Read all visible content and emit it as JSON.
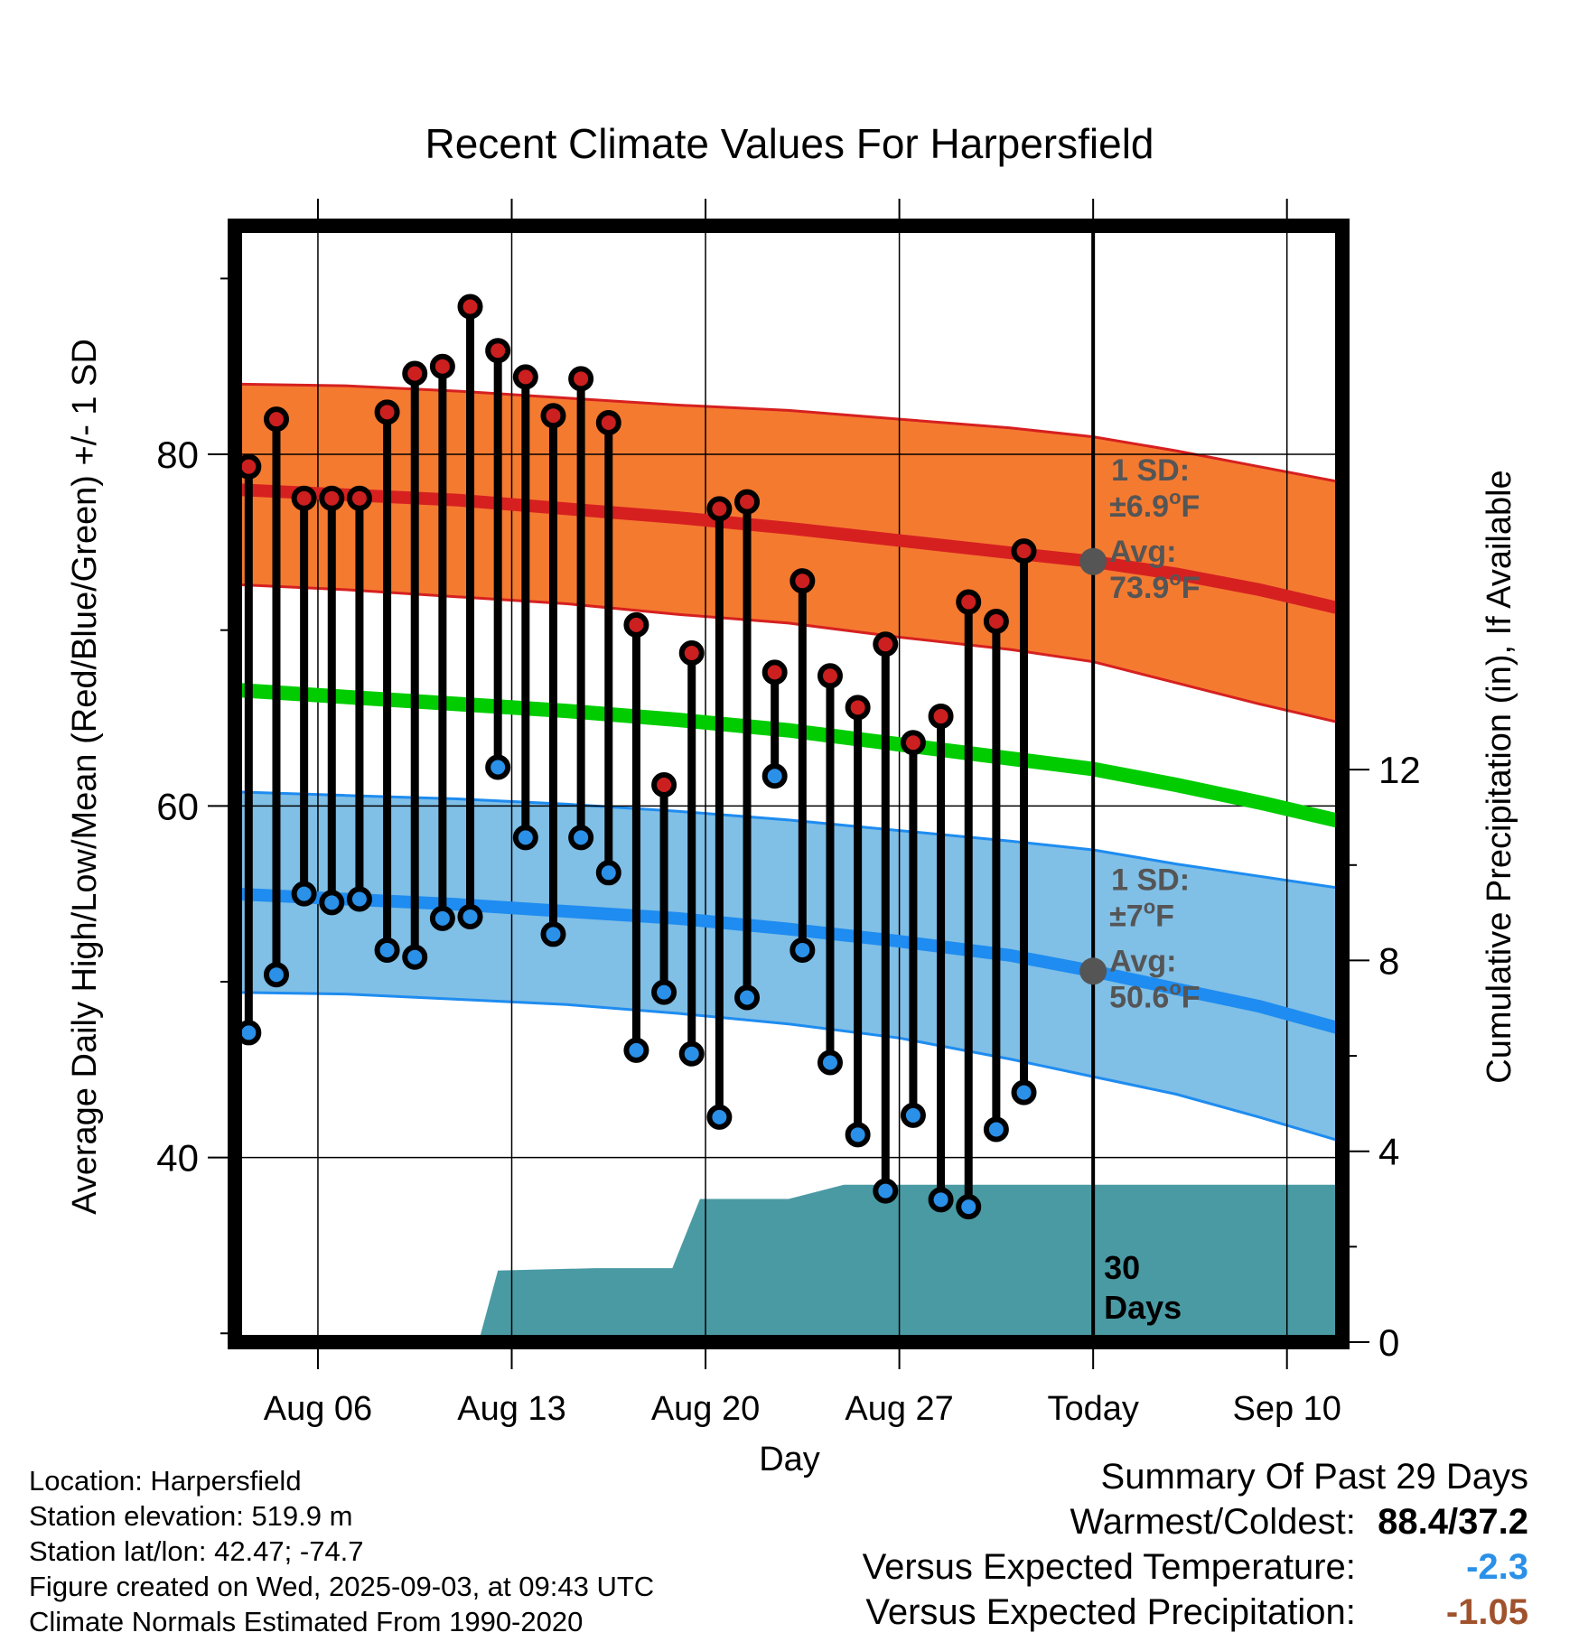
{
  "colors": {
    "high_band": "#f47a30",
    "high_band_edge": "#d62020",
    "high_mean": "#d62020",
    "low_band": "#80bfe6",
    "low_band_edge": "#1e8cf0",
    "low_mean": "#1e8cf0",
    "daily_mean": "#00cc00",
    "precip": "#4a9aa4",
    "high_marker": "#cc1f1f",
    "low_marker": "#2a90e8",
    "avg_marker": "#555555",
    "annotation": "#555555",
    "vs_temp": "#2a90e8",
    "vs_precip": "#a0522d"
  },
  "chart_data": {
    "type": "line",
    "title": "Recent Climate Values For Harpersfield",
    "xlabel": "Day",
    "ylabel": "Average Daily High/Low/Mean (Red/Blue/Green) +/- 1 SD",
    "y2label": "Cumulative Precipitation (in), If Available",
    "ylim": [
      29.5,
      93
    ],
    "y2lim": [
      0,
      23.4
    ],
    "xlim": [
      0.5,
      40.5
    ],
    "grid": true,
    "x_ticks": [
      {
        "x": 3.5,
        "label": "Aug 06"
      },
      {
        "x": 10.5,
        "label": "Aug 13"
      },
      {
        "x": 17.5,
        "label": "Aug 20"
      },
      {
        "x": 24.5,
        "label": "Aug 27"
      },
      {
        "x": 31.5,
        "label": "Today"
      },
      {
        "x": 38.5,
        "label": "Sep 10"
      }
    ],
    "y_ticks": [
      40,
      60,
      80
    ],
    "y_minor_ticks": [
      30,
      50,
      70,
      90
    ],
    "y2_ticks": [
      0,
      4,
      8,
      12
    ],
    "today_x": 31.5,
    "today_label": [
      "30",
      "Days"
    ],
    "daily_high": [
      79.3,
      82,
      77.5,
      77.5,
      77.5,
      82.4,
      84.6,
      85,
      88.4,
      85.9,
      84.4,
      82.2,
      84.3,
      81.8,
      70.3,
      61.2,
      68.7,
      76.9,
      77.3,
      67.6,
      72.8,
      67.4,
      65.6,
      69.2,
      63.6,
      65.1,
      71.6,
      70.5,
      74.5
    ],
    "daily_low": [
      47.1,
      50.4,
      55,
      54.5,
      54.7,
      51.8,
      51.4,
      53.6,
      53.7,
      62.2,
      58.2,
      52.7,
      58.2,
      56.2,
      46.1,
      49.4,
      45.9,
      42.3,
      49.1,
      61.7,
      51.8,
      45.4,
      41.3,
      38.1,
      42.4,
      37.6,
      37.2,
      41.6,
      43.7
    ],
    "normal_x": [
      0.5,
      4.5,
      8.5,
      12.5,
      16.5,
      20.5,
      24.5,
      28.5,
      31.5,
      34.5,
      37.5,
      40.5
    ],
    "normal_high_mean": [
      78,
      77.7,
      77.4,
      76.9,
      76.4,
      75.8,
      75.1,
      74.4,
      73.9,
      73.2,
      72.3,
      71.2
    ],
    "normal_high_sd_upper": [
      84.0,
      83.9,
      83.6,
      83.2,
      82.8,
      82.5,
      82.0,
      81.5,
      81.0,
      80.2,
      79.3,
      78.4
    ],
    "normal_high_sd_lower": [
      72.6,
      72.3,
      71.9,
      71.5,
      70.9,
      70.4,
      69.6,
      68.9,
      68.2,
      67.0,
      65.8,
      64.7
    ],
    "normal_mean": [
      66.6,
      66.2,
      65.8,
      65.4,
      64.9,
      64.3,
      63.5,
      62.7,
      62.1,
      61.2,
      60.2,
      59.1
    ],
    "normal_low_mean": [
      55.0,
      54.7,
      54.4,
      54.0,
      53.6,
      53.0,
      52.3,
      51.5,
      50.6,
      49.6,
      48.6,
      47.3
    ],
    "normal_low_sd_upper": [
      60.8,
      60.6,
      60.4,
      60.1,
      59.7,
      59.2,
      58.6,
      58.0,
      57.5,
      56.7,
      56.0,
      55.3
    ],
    "normal_low_sd_lower": [
      49.4,
      49.3,
      49.0,
      48.7,
      48.2,
      47.6,
      46.8,
      45.6,
      44.6,
      43.6,
      42.3,
      40.9
    ],
    "precip_x": [
      0.5,
      9.3,
      10.0,
      13.5,
      16.3,
      17.3,
      20.5,
      22.5,
      40.5
    ],
    "precip_y": [
      0,
      0,
      1.5,
      1.55,
      1.55,
      3.0,
      3.0,
      3.3,
      3.3
    ],
    "annotations": {
      "high": {
        "sd_label": "1 SD:",
        "sd_value": "±6.9",
        "avg_label": "Avg:",
        "avg_value": "73.9",
        "unit": "F",
        "avg": 73.9
      },
      "low": {
        "sd_label": "1 SD:",
        "sd_value": "±7",
        "avg_label": "Avg:",
        "avg_value": "50.6",
        "unit": "F",
        "avg": 50.6
      }
    }
  },
  "station": {
    "location": "Location: Harpersfield",
    "elevation": "Station elevation: 519.9 m",
    "latlon": "Station lat/lon: 42.47; -74.7",
    "created": "Figure created on Wed, 2025-09-03, at 09:43 UTC",
    "normals": "Climate Normals Estimated From 1990-2020"
  },
  "summary": {
    "title": "Summary Of Past 29 Days",
    "warm_cold_label": "Warmest/Coldest:",
    "warm_cold_value": "88.4/37.2",
    "vs_temp_label": "Versus Expected Temperature:",
    "vs_temp_value": "-2.3",
    "vs_precip_label": "Versus Expected Precipitation:",
    "vs_precip_value": "-1.05"
  }
}
